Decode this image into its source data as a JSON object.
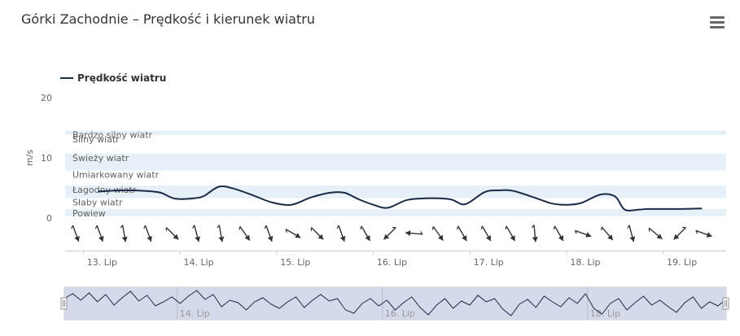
{
  "chart_data": {
    "type": "line",
    "title": "Górki Zachodnie – Prędkość i kierunek wiatru",
    "ylabel": "m/s",
    "ylim": [
      0,
      20
    ],
    "yticks": [
      "20",
      "10",
      "0"
    ],
    "legend": {
      "placement": "top-left",
      "entries": [
        "Prędkość wiatru"
      ]
    },
    "series": [
      {
        "name": "Prędkość wiatru",
        "color": "#1c2a48",
        "x": [
          13.0,
          13.25,
          13.5,
          13.65,
          13.8,
          14.0,
          14.1,
          14.25,
          14.4,
          14.6,
          14.8,
          15.0,
          15.2,
          15.4,
          15.55,
          15.7,
          15.85,
          16.0,
          16.2,
          16.45,
          16.65,
          16.8,
          17.0,
          17.15,
          17.3,
          17.55,
          17.7,
          17.85,
          18.0,
          18.2,
          18.35,
          18.45,
          18.6,
          18.7,
          19.0,
          19.25
        ],
        "values": [
          4.4,
          4.6,
          4.5,
          4.2,
          3.2,
          3.3,
          3.7,
          5.2,
          4.9,
          3.8,
          2.6,
          2.2,
          3.4,
          4.2,
          4.2,
          3.1,
          2.2,
          1.7,
          3.0,
          3.3,
          3.1,
          2.3,
          4.3,
          4.6,
          4.5,
          3.2,
          2.4,
          2.2,
          2.5,
          3.9,
          3.6,
          1.4,
          1.4,
          1.5,
          1.5,
          1.6
        ]
      }
    ],
    "bands": [
      {
        "label": "Powiew",
        "from": 0.3,
        "to": 1.5,
        "shaded": true
      },
      {
        "label": "Słaby wiatr",
        "from": 1.5,
        "to": 3.3,
        "shaded": false
      },
      {
        "label": "Łagodny wiatr",
        "from": 3.3,
        "to": 5.4,
        "shaded": true
      },
      {
        "label": "Umiarkowany wiatr",
        "from": 5.4,
        "to": 7.9,
        "shaded": false
      },
      {
        "label": "Świeży wiatr",
        "from": 7.9,
        "to": 10.7,
        "shaded": true
      },
      {
        "label": "Silny wiatr",
        "from": 10.7,
        "to": 13.8,
        "shaded": false
      },
      {
        "label": "Bardzo silny wiatr",
        "from": 13.8,
        "to": 14.5,
        "shaded": true
      }
    ],
    "band_color": "#e6f0f7",
    "x_ticks": [
      {
        "x": 13.0,
        "label": "13. Lip"
      },
      {
        "x": 14.0,
        "label": "14. Lip"
      },
      {
        "x": 15.0,
        "label": "15. Lip"
      },
      {
        "x": 16.0,
        "label": "16. Lip"
      },
      {
        "x": 17.0,
        "label": "17. Lip"
      },
      {
        "x": 18.0,
        "label": "18. Lip"
      },
      {
        "x": 19.0,
        "label": "19. Lip"
      }
    ],
    "xlim": [
      12.66,
      19.5
    ],
    "wind_direction_deg": [
      340,
      340,
      350,
      340,
      315,
      345,
      350,
      325,
      340,
      300,
      315,
      340,
      330,
      45,
      95,
      325,
      330,
      330,
      330,
      355,
      330,
      290,
      320,
      345,
      310,
      45,
      290
    ],
    "wind_direction_x": [
      12.77,
      13.02,
      13.27,
      13.52,
      13.77,
      14.02,
      14.27,
      14.52,
      14.77,
      15.02,
      15.27,
      15.52,
      15.77,
      16.02,
      16.27,
      16.52,
      16.77,
      17.02,
      17.27,
      17.52,
      17.77,
      18.02,
      18.27,
      18.52,
      18.77,
      19.02,
      19.27
    ],
    "navigator": {
      "x_ticks": [
        {
          "x": 14.0,
          "label": "14. Lip"
        },
        {
          "x": 16.0,
          "label": "16. Lip"
        },
        {
          "x": 18.0,
          "label": "18. Lip"
        }
      ],
      "xlim": [
        12.9,
        19.35
      ],
      "values": [
        2.4,
        3.0,
        2.2,
        3.1,
        2.0,
        2.9,
        1.6,
        2.5,
        3.3,
        2.1,
        2.8,
        1.5,
        2.0,
        2.6,
        1.8,
        2.7,
        3.4,
        2.3,
        2.9,
        1.4,
        2.2,
        1.9,
        1.0,
        2.0,
        2.5,
        1.7,
        1.2,
        2.0,
        2.6,
        1.3,
        2.2,
        2.9,
        2.1,
        2.4,
        1.0,
        0.6,
        1.8,
        2.4,
        1.5,
        2.2,
        1.0,
        1.9,
        2.6,
        1.3,
        0.4,
        1.6,
        2.4,
        1.2,
        2.1,
        1.6,
        2.8,
        2.0,
        2.4,
        1.1,
        0.3,
        1.7,
        2.3,
        1.3,
        2.7,
        2.0,
        1.4,
        2.5,
        1.8,
        3.0,
        1.2,
        0.5,
        1.8,
        2.4,
        1.0,
        1.9,
        2.7,
        1.6,
        2.2,
        1.4,
        0.7,
        1.9,
        2.6,
        1.2,
        2.0,
        1.5,
        2.3
      ]
    }
  }
}
